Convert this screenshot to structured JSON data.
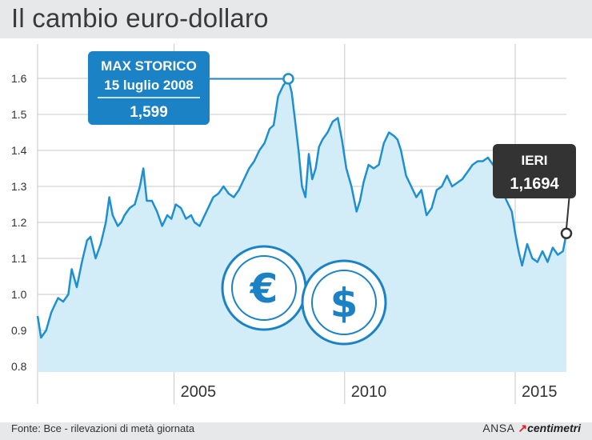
{
  "title": "Il cambio euro-dollaro",
  "source": "Fonte: Bce - rilevazioni di metà giornata",
  "brand": {
    "agency": "ANSA",
    "logo": "centimetri"
  },
  "colors": {
    "background": "#e6e8ea",
    "plot_bg": "#ffffff",
    "area_fill": "#d2ecf8",
    "line": "#1e8fd0",
    "callout_max": "#1b82c6",
    "callout_now": "#333333",
    "grid": "#c8c8c8"
  },
  "icons": [
    "euro-coin-icon",
    "dollar-coin-icon"
  ],
  "callouts": {
    "max": {
      "line1": "MAX STORICO",
      "line2": "15 luglio 2008",
      "value": "1,599"
    },
    "now": {
      "line1": "IERI",
      "value": "1,1694"
    }
  },
  "chart_data": {
    "type": "area",
    "title": "Il cambio euro-dollaro",
    "xlabel": "",
    "ylabel": "",
    "xlim": [
      2001.0,
      2016.5
    ],
    "ylim": [
      0.8,
      1.6
    ],
    "x_ticks": [
      2005,
      2010,
      2015
    ],
    "x_tick_labels": [
      "2005",
      "2010",
      "2015"
    ],
    "y_ticks": [
      0.8,
      0.9,
      1.0,
      1.1,
      1.2,
      1.3,
      1.4,
      1.5,
      1.6
    ],
    "y_tick_labels": [
      "0.8",
      "0.9",
      "1.0",
      "1.1",
      "1.2",
      "1.3",
      "1.4",
      "1.5",
      "1.6"
    ],
    "grid": true,
    "x": [
      2001.0,
      2001.1,
      2001.25,
      2001.4,
      2001.5,
      2001.6,
      2001.75,
      2001.9,
      2002.0,
      2002.15,
      2002.3,
      2002.45,
      2002.55,
      2002.7,
      2002.85,
      2003.0,
      2003.1,
      2003.2,
      2003.35,
      2003.45,
      2003.55,
      2003.7,
      2003.85,
      2004.0,
      2004.1,
      2004.2,
      2004.35,
      2004.5,
      2004.65,
      2004.8,
      2004.92,
      2005.05,
      2005.2,
      2005.35,
      2005.5,
      2005.6,
      2005.75,
      2005.85,
      2006.0,
      2006.15,
      2006.3,
      2006.45,
      2006.6,
      2006.75,
      2006.9,
      2007.05,
      2007.2,
      2007.35,
      2007.5,
      2007.65,
      2007.8,
      2007.92,
      2008.05,
      2008.2,
      2008.35,
      2008.45,
      2008.55,
      2008.65,
      2008.75,
      2008.85,
      2008.95,
      2009.05,
      2009.15,
      2009.25,
      2009.35,
      2009.5,
      2009.65,
      2009.8,
      2009.92,
      2010.05,
      2010.2,
      2010.35,
      2010.45,
      2010.55,
      2010.7,
      2010.85,
      2011.0,
      2011.15,
      2011.3,
      2011.45,
      2011.55,
      2011.65,
      2011.8,
      2011.95,
      2012.1,
      2012.25,
      2012.4,
      2012.55,
      2012.7,
      2012.85,
      2013.0,
      2013.15,
      2013.3,
      2013.45,
      2013.6,
      2013.75,
      2013.9,
      2014.05,
      2014.2,
      2014.35,
      2014.5,
      2014.6,
      2014.7,
      2014.8,
      2014.9,
      2015.0,
      2015.1,
      2015.2,
      2015.35,
      2015.5,
      2015.65,
      2015.8,
      2015.95,
      2016.1,
      2016.25,
      2016.4,
      2016.5
    ],
    "series": [
      {
        "values": [
          0.94,
          0.88,
          0.9,
          0.95,
          0.97,
          0.99,
          0.98,
          1.0,
          1.07,
          1.02,
          1.09,
          1.15,
          1.16,
          1.1,
          1.14,
          1.2,
          1.27,
          1.22,
          1.19,
          1.2,
          1.22,
          1.24,
          1.25,
          1.3,
          1.35,
          1.26,
          1.26,
          1.23,
          1.19,
          1.22,
          1.21,
          1.25,
          1.24,
          1.21,
          1.22,
          1.2,
          1.19,
          1.21,
          1.24,
          1.27,
          1.28,
          1.3,
          1.28,
          1.27,
          1.29,
          1.32,
          1.35,
          1.37,
          1.4,
          1.42,
          1.46,
          1.47,
          1.55,
          1.58,
          1.599,
          1.56,
          1.48,
          1.4,
          1.3,
          1.27,
          1.39,
          1.32,
          1.35,
          1.41,
          1.43,
          1.45,
          1.48,
          1.49,
          1.43,
          1.35,
          1.3,
          1.23,
          1.26,
          1.31,
          1.36,
          1.35,
          1.36,
          1.42,
          1.45,
          1.44,
          1.43,
          1.4,
          1.33,
          1.3,
          1.27,
          1.29,
          1.22,
          1.24,
          1.29,
          1.3,
          1.33,
          1.3,
          1.31,
          1.32,
          1.34,
          1.36,
          1.37,
          1.37,
          1.38,
          1.36,
          1.34,
          1.31,
          1.27,
          1.25,
          1.23,
          1.17,
          1.12,
          1.08,
          1.14,
          1.1,
          1.09,
          1.12,
          1.09,
          1.13,
          1.11,
          1.12,
          1.1694
        ]
      }
    ]
  }
}
